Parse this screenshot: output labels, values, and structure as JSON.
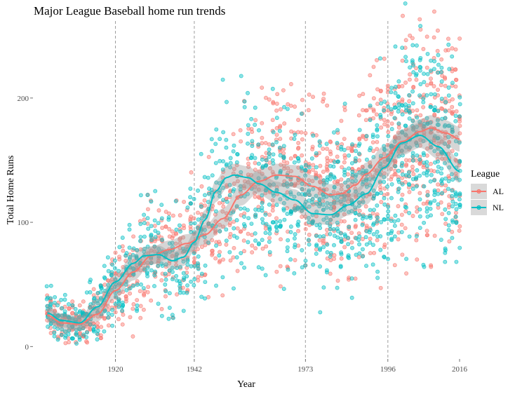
{
  "chart_data": {
    "type": "scatter",
    "title": "Major League Baseball home run trends",
    "xlabel": "Year",
    "ylabel": "Total Home Runs",
    "xlim": [
      1897,
      2016
    ],
    "ylim": [
      -10,
      262
    ],
    "x_ticks": [
      1920,
      1942,
      1973,
      1996,
      2016
    ],
    "y_ticks": [
      0,
      100,
      200
    ],
    "vlines": [
      1920,
      1942,
      1973,
      1996
    ],
    "grid": false,
    "legend_title": "League",
    "legend_position": "right",
    "series": [
      {
        "name": "AL",
        "color": "#F8766D",
        "trend": [
          [
            1901,
            25
          ],
          [
            1905,
            19
          ],
          [
            1910,
            18
          ],
          [
            1915,
            26
          ],
          [
            1920,
            45
          ],
          [
            1925,
            60
          ],
          [
            1930,
            73
          ],
          [
            1935,
            78
          ],
          [
            1940,
            83
          ],
          [
            1945,
            90
          ],
          [
            1950,
            103
          ],
          [
            1955,
            122
          ],
          [
            1960,
            133
          ],
          [
            1965,
            138
          ],
          [
            1970,
            137
          ],
          [
            1975,
            129
          ],
          [
            1980,
            122
          ],
          [
            1983,
            123
          ],
          [
            1987,
            130
          ],
          [
            1990,
            139
          ],
          [
            1995,
            152
          ],
          [
            2000,
            165
          ],
          [
            2005,
            173
          ],
          [
            2008,
            176
          ],
          [
            2012,
            172
          ],
          [
            2016,
            167
          ]
        ]
      },
      {
        "name": "NL",
        "color": "#00BFC4",
        "trend": [
          [
            1901,
            27
          ],
          [
            1905,
            21
          ],
          [
            1910,
            19
          ],
          [
            1915,
            32
          ],
          [
            1920,
            52
          ],
          [
            1925,
            67
          ],
          [
            1928,
            73
          ],
          [
            1932,
            74
          ],
          [
            1936,
            69
          ],
          [
            1939,
            72
          ],
          [
            1942,
            84
          ],
          [
            1945,
            102
          ],
          [
            1948,
            125
          ],
          [
            1951,
            136
          ],
          [
            1953,
            138
          ],
          [
            1957,
            136
          ],
          [
            1960,
            131
          ],
          [
            1965,
            124
          ],
          [
            1970,
            118
          ],
          [
            1975,
            107
          ],
          [
            1980,
            106
          ],
          [
            1985,
            114
          ],
          [
            1990,
            123
          ],
          [
            1995,
            144
          ],
          [
            2000,
            164
          ],
          [
            2005,
            170
          ],
          [
            2010,
            161
          ],
          [
            2016,
            141
          ]
        ]
      }
    ],
    "points_note": ""
  }
}
